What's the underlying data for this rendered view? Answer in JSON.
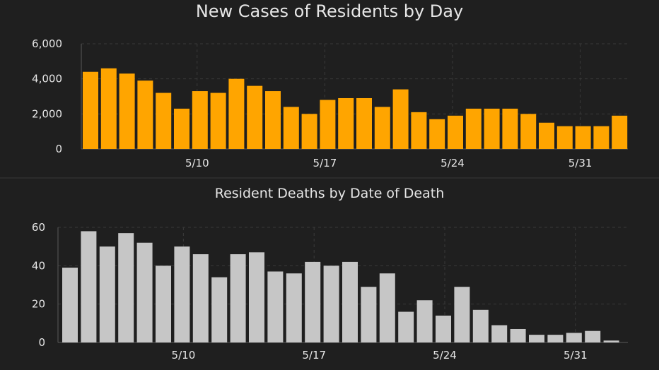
{
  "chart_data": [
    {
      "type": "bar",
      "title": "New Cases of Residents by Day",
      "color": "#ffa500",
      "ylim": [
        0,
        6000
      ],
      "yticks": [
        0,
        2000,
        4000,
        6000
      ],
      "ytick_labels": [
        "0",
        "2,000",
        "4,000",
        "6,000"
      ],
      "x_tick_labels": [
        {
          "label": "5/10",
          "index": 6
        },
        {
          "label": "5/17",
          "index": 13
        },
        {
          "label": "5/24",
          "index": 20
        },
        {
          "label": "5/31",
          "index": 27
        }
      ],
      "grid": true,
      "values": [
        4400,
        4600,
        4300,
        3900,
        3200,
        2300,
        3300,
        3200,
        4000,
        3600,
        3300,
        2400,
        2000,
        2800,
        2900,
        2900,
        2400,
        3400,
        2100,
        1700,
        1900,
        2300,
        2300,
        2300,
        2000,
        1500,
        1300,
        1300,
        1300,
        1900
      ]
    },
    {
      "type": "bar",
      "title": "Resident Deaths by Date of Death",
      "color": "#c6c6c6",
      "ylim": [
        0,
        60
      ],
      "yticks": [
        0,
        20,
        40,
        60
      ],
      "ytick_labels": [
        "0",
        "20",
        "40",
        "60"
      ],
      "x_tick_labels": [
        {
          "label": "5/10",
          "index": 6
        },
        {
          "label": "5/17",
          "index": 13
        },
        {
          "label": "5/24",
          "index": 20
        },
        {
          "label": "5/31",
          "index": 27
        }
      ],
      "grid": true,
      "values": [
        39,
        58,
        50,
        57,
        52,
        40,
        50,
        46,
        34,
        46,
        47,
        37,
        36,
        42,
        40,
        42,
        29,
        36,
        16,
        22,
        14,
        29,
        17,
        9,
        7,
        4,
        4,
        5,
        6,
        1
      ]
    }
  ]
}
